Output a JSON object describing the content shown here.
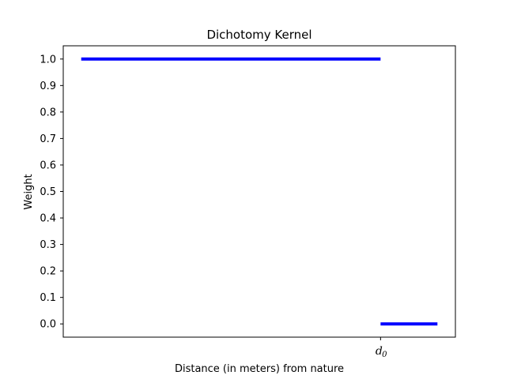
{
  "chart_data": {
    "type": "line",
    "title": "Dichotomy Kernel",
    "xlabel": "Distance (in meters) from nature",
    "ylabel": "Weight",
    "x_tick": {
      "label": "d",
      "subscript": "0",
      "value": 1.0
    },
    "xlim": [
      -0.06,
      1.25
    ],
    "ylim": [
      -0.05,
      1.05
    ],
    "yticks": [
      0.0,
      0.1,
      0.2,
      0.3,
      0.4,
      0.5,
      0.6,
      0.7,
      0.8,
      0.9,
      1.0
    ],
    "ytick_labels": [
      "0.0",
      "0.1",
      "0.2",
      "0.3",
      "0.4",
      "0.5",
      "0.6",
      "0.7",
      "0.8",
      "0.9",
      "1.0"
    ],
    "series": [
      {
        "segments": [
          {
            "x": [
              0.0,
              1.0
            ],
            "y": [
              1.0,
              1.0
            ]
          },
          {
            "x": [
              1.0,
              1.19
            ],
            "y": [
              0.0,
              0.0
            ]
          }
        ]
      }
    ],
    "line_color": "#0000ff",
    "grid": false
  }
}
